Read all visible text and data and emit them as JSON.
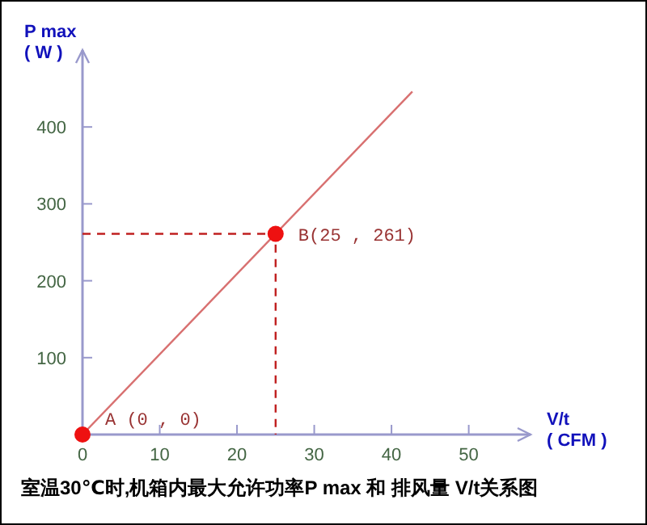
{
  "chart_data": {
    "type": "line",
    "title": "室温30℃时,机箱内最大允许功率P max 和 排风量 V/t关系图",
    "xlabel": "V/t\n( CFM )",
    "ylabel": "P max\n( W )",
    "xlim": [
      0,
      58
    ],
    "ylim": [
      0,
      500
    ],
    "xticks": [
      0,
      10,
      20,
      30,
      40,
      50
    ],
    "yticks": [
      100,
      200,
      300,
      400
    ],
    "grid": false,
    "series": [
      {
        "color": "#d87070",
        "x": [
          0,
          42.7
        ],
        "values": [
          0,
          446
        ],
        "line_style": "solid",
        "marker": "none"
      },
      {
        "color": "#c02020",
        "x": [
          0,
          25,
          25
        ],
        "values": [
          261,
          261,
          0
        ],
        "line_style": "dashed",
        "marker": "none"
      },
      {
        "type": "scatter",
        "color": "#ee1111",
        "x": [
          0,
          25
        ],
        "values": [
          0,
          261
        ],
        "marker": "circle"
      }
    ],
    "annotations": [
      {
        "text": "A (0 , 0)",
        "x": 0,
        "y": 0
      },
      {
        "text": "B(25 , 261)",
        "x": 25,
        "y": 261
      }
    ]
  }
}
